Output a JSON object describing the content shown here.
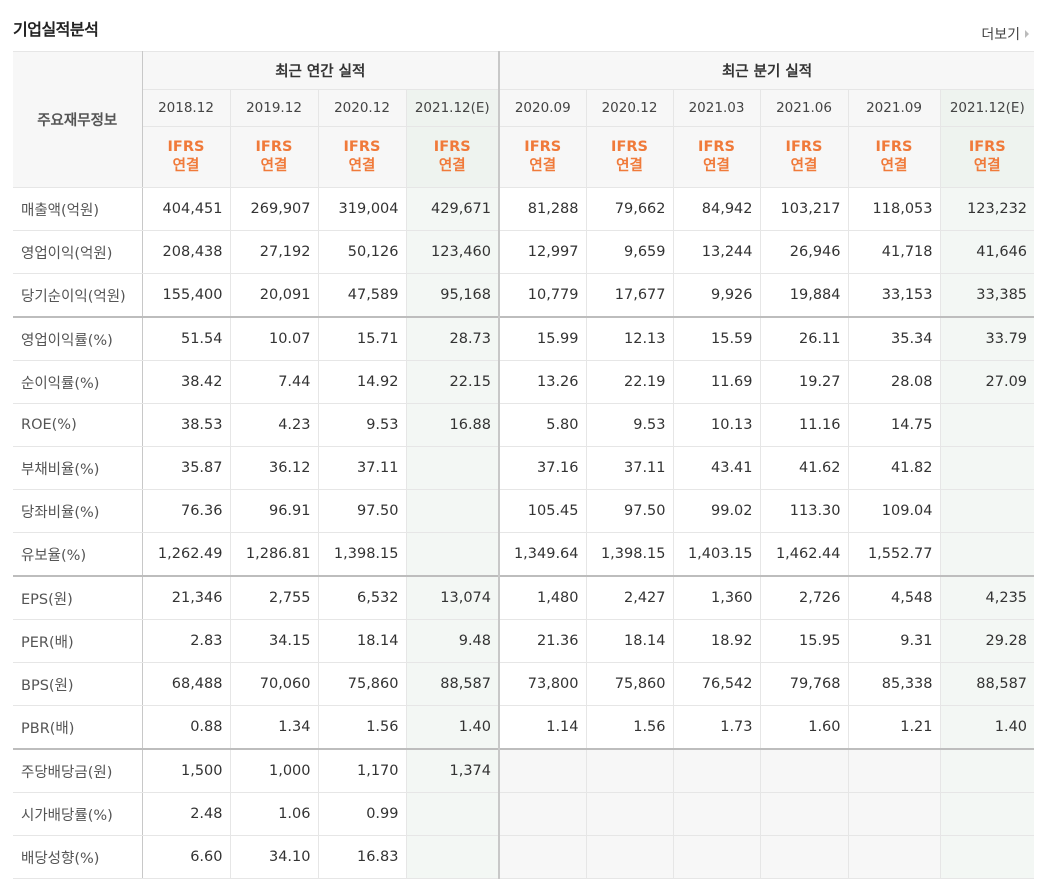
{
  "title": "기업실적분석",
  "more_label": "더보기",
  "table": {
    "row_header_label": "주요재무정보",
    "groups": [
      {
        "label": "최근 연간 실적",
        "span": 4
      },
      {
        "label": "최근 분기 실적",
        "span": 6
      }
    ],
    "periods": [
      "2018.12",
      "2019.12",
      "2020.12",
      "2021.12(E)",
      "2020.09",
      "2020.12",
      "2021.03",
      "2021.06",
      "2021.09",
      "2021.12(E)"
    ],
    "standard_line1": "IFRS",
    "standard_line2": "연결",
    "rows": [
      {
        "label": "매출액(억원)",
        "values": [
          "404,451",
          "269,907",
          "319,004",
          "429,671",
          "81,288",
          "79,662",
          "84,942",
          "103,217",
          "118,053",
          "123,232"
        ]
      },
      {
        "label": "영업이익(억원)",
        "values": [
          "208,438",
          "27,192",
          "50,126",
          "123,460",
          "12,997",
          "9,659",
          "13,244",
          "26,946",
          "41,718",
          "41,646"
        ]
      },
      {
        "label": "당기순이익(억원)",
        "values": [
          "155,400",
          "20,091",
          "47,589",
          "95,168",
          "10,779",
          "17,677",
          "9,926",
          "19,884",
          "33,153",
          "33,385"
        ]
      },
      {
        "label": "영업이익률(%)",
        "values": [
          "51.54",
          "10.07",
          "15.71",
          "28.73",
          "15.99",
          "12.13",
          "15.59",
          "26.11",
          "35.34",
          "33.79"
        ]
      },
      {
        "label": "순이익률(%)",
        "values": [
          "38.42",
          "7.44",
          "14.92",
          "22.15",
          "13.26",
          "22.19",
          "11.69",
          "19.27",
          "28.08",
          "27.09"
        ]
      },
      {
        "label": "ROE(%)",
        "values": [
          "38.53",
          "4.23",
          "9.53",
          "16.88",
          "5.80",
          "9.53",
          "10.13",
          "11.16",
          "14.75",
          ""
        ]
      },
      {
        "label": "부채비율(%)",
        "values": [
          "35.87",
          "36.12",
          "37.11",
          "",
          "37.16",
          "37.11",
          "43.41",
          "41.62",
          "41.82",
          ""
        ]
      },
      {
        "label": "당좌비율(%)",
        "values": [
          "76.36",
          "96.91",
          "97.50",
          "",
          "105.45",
          "97.50",
          "99.02",
          "113.30",
          "109.04",
          ""
        ]
      },
      {
        "label": "유보율(%)",
        "values": [
          "1,262.49",
          "1,286.81",
          "1,398.15",
          "",
          "1,349.64",
          "1,398.15",
          "1,403.15",
          "1,462.44",
          "1,552.77",
          ""
        ]
      },
      {
        "label": "EPS(원)",
        "values": [
          "21,346",
          "2,755",
          "6,532",
          "13,074",
          "1,480",
          "2,427",
          "1,360",
          "2,726",
          "4,548",
          "4,235"
        ]
      },
      {
        "label": "PER(배)",
        "values": [
          "2.83",
          "34.15",
          "18.14",
          "9.48",
          "21.36",
          "18.14",
          "18.92",
          "15.95",
          "9.31",
          "29.28"
        ]
      },
      {
        "label": "BPS(원)",
        "values": [
          "68,488",
          "70,060",
          "75,860",
          "88,587",
          "73,800",
          "75,860",
          "76,542",
          "79,768",
          "85,338",
          "88,587"
        ]
      },
      {
        "label": "PBR(배)",
        "values": [
          "0.88",
          "1.34",
          "1.56",
          "1.40",
          "1.14",
          "1.56",
          "1.73",
          "1.60",
          "1.21",
          "1.40"
        ]
      },
      {
        "label": "주당배당금(원)",
        "values": [
          "1,500",
          "1,000",
          "1,170",
          "1,374",
          "",
          "",
          "",
          "",
          "",
          ""
        ]
      },
      {
        "label": "시가배당률(%)",
        "values": [
          "2.48",
          "1.06",
          "0.99",
          "",
          "",
          "",
          "",
          "",
          "",
          ""
        ]
      },
      {
        "label": "배당성향(%)",
        "values": [
          "6.60",
          "34.10",
          "16.83",
          "",
          "",
          "",
          "",
          "",
          "",
          ""
        ]
      }
    ]
  },
  "colors": {
    "ifrs_text": "#f07a3a",
    "estimate_column_bg": "#f3f7f4",
    "header_bg": "#f7f7f7"
  }
}
